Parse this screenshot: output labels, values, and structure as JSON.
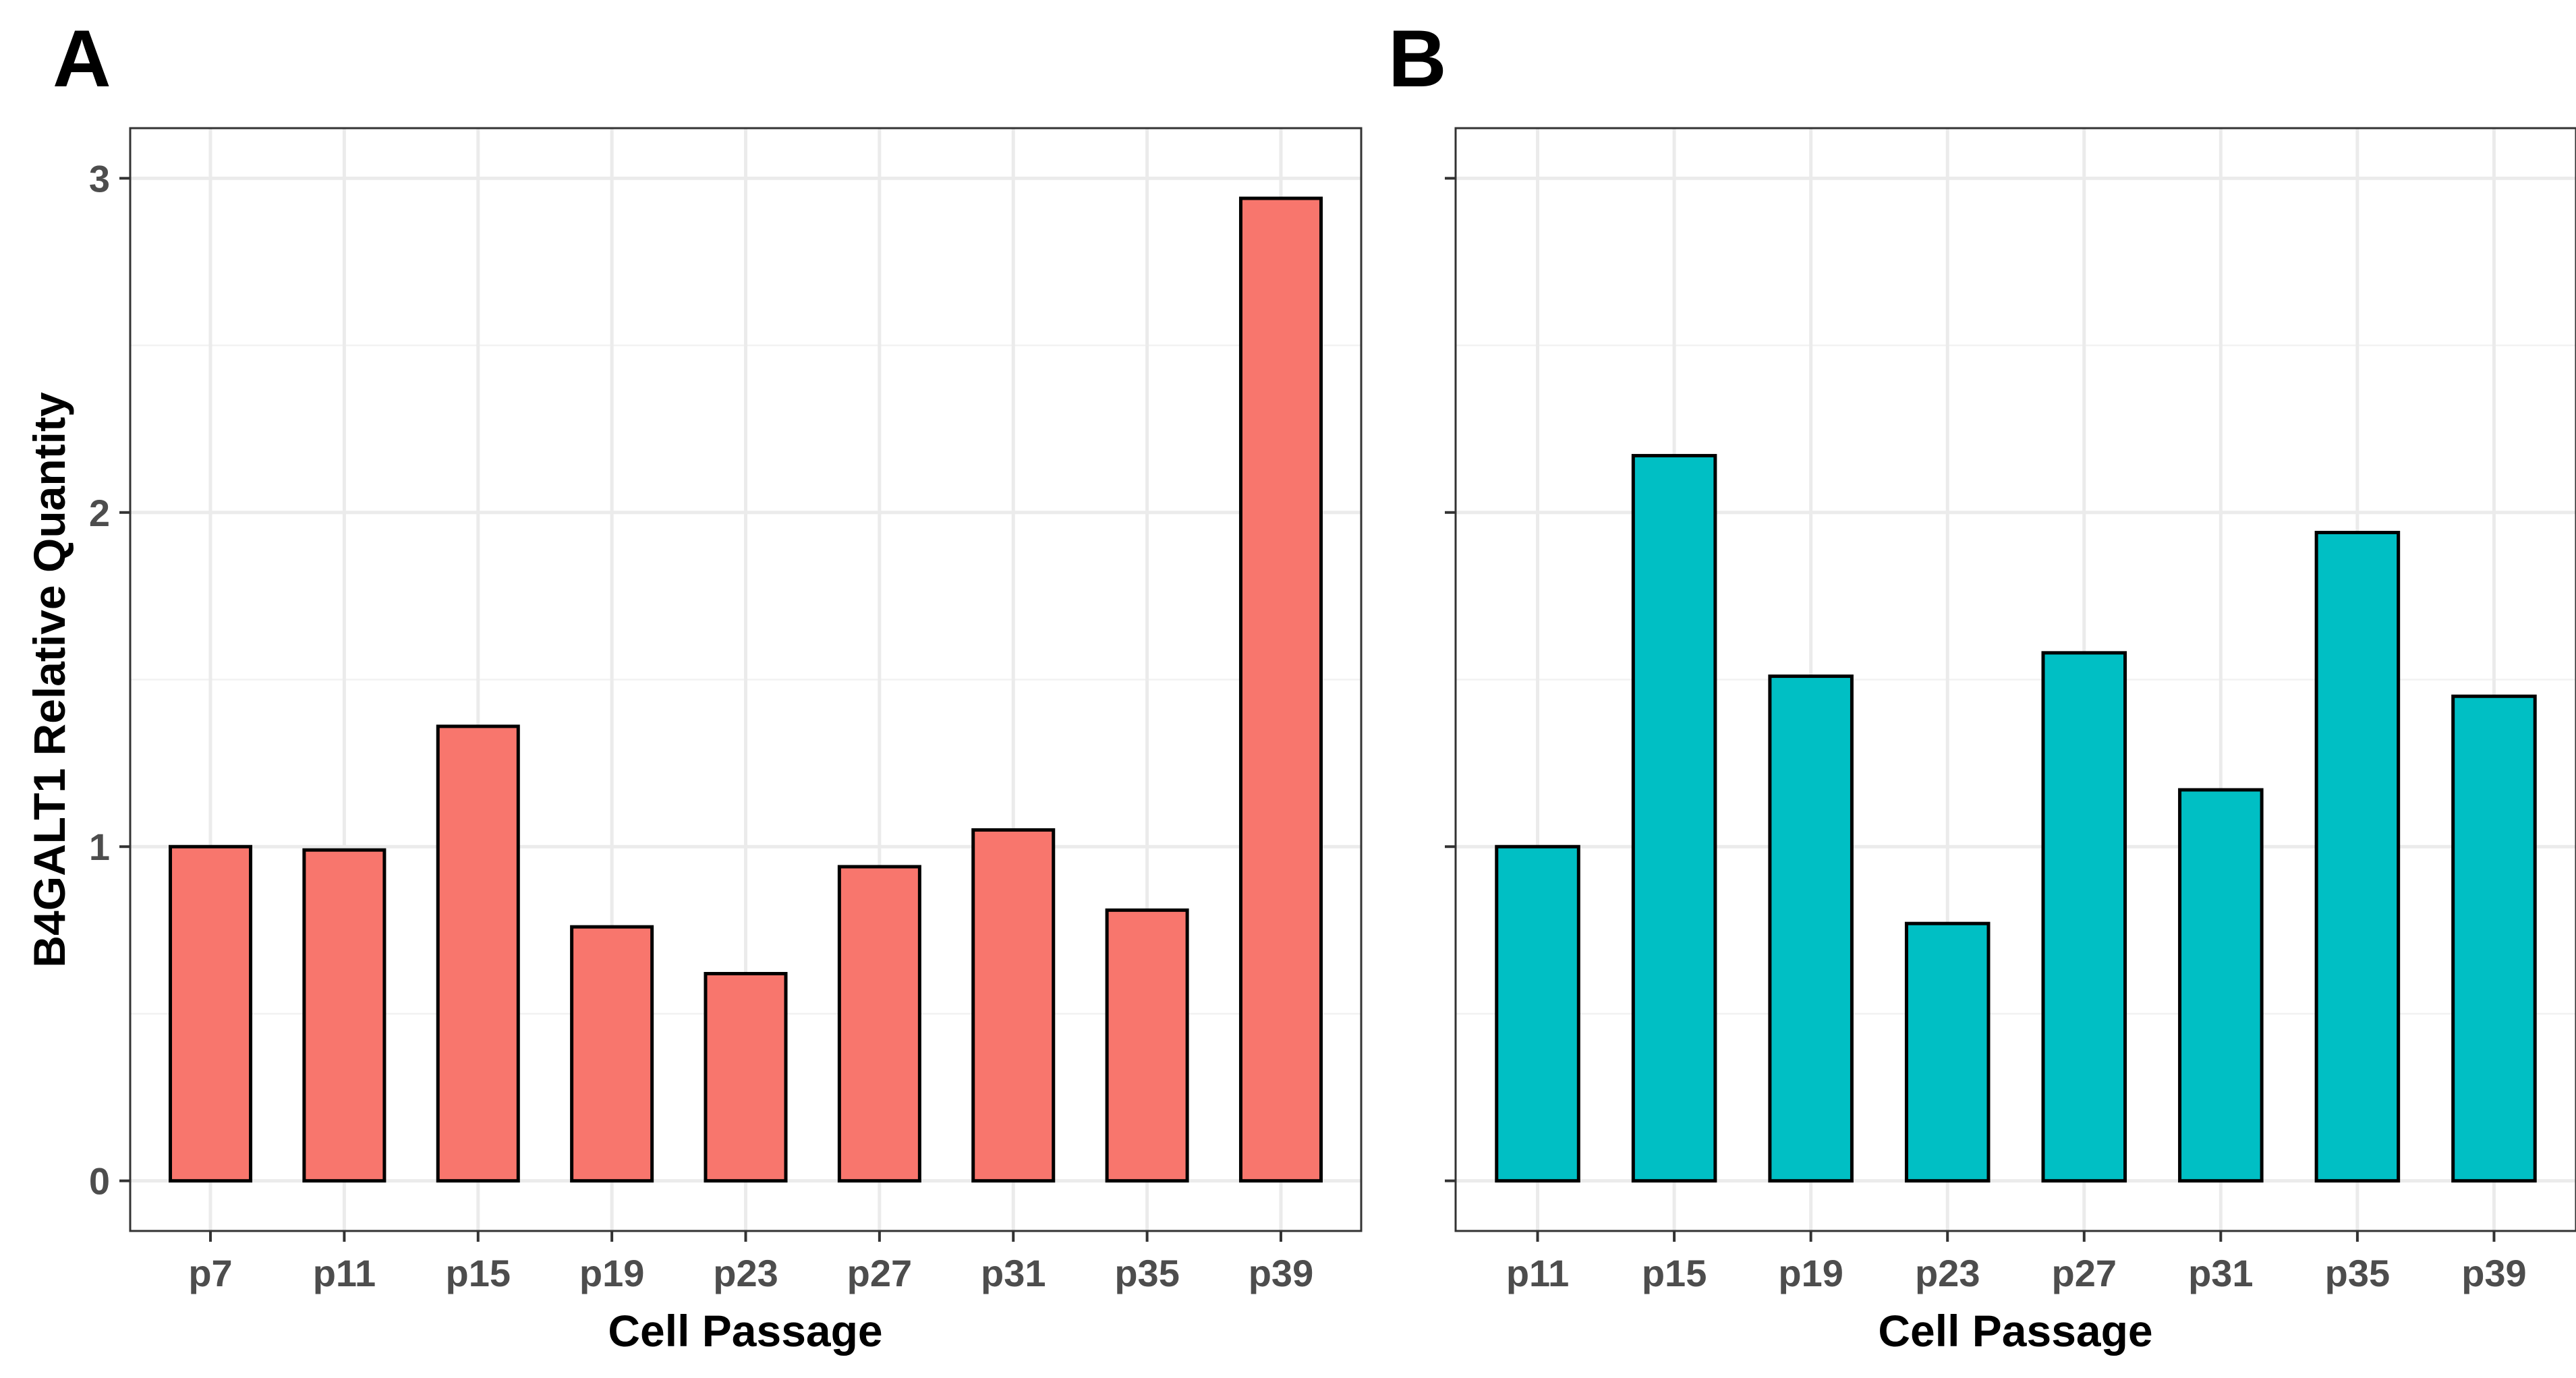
{
  "chart_data": [
    {
      "panel": "A",
      "type": "bar",
      "categories": [
        "p7",
        "p11",
        "p15",
        "p19",
        "p23",
        "p27",
        "p31",
        "p35",
        "p39"
      ],
      "values": [
        1.0,
        0.99,
        1.36,
        0.76,
        0.62,
        0.94,
        1.05,
        0.81,
        2.94
      ],
      "color": "#F8766D",
      "xlabel": "Cell Passage",
      "ylabel": "B4GALT1 Relative Quantity",
      "yticks": [
        0,
        1,
        2,
        3
      ],
      "ylim": [
        -0.15,
        3.15
      ],
      "grid": true
    },
    {
      "panel": "B",
      "type": "bar",
      "categories": [
        "p11",
        "p15",
        "p19",
        "p23",
        "p27",
        "p31",
        "p35",
        "p39"
      ],
      "values": [
        1.0,
        2.17,
        1.51,
        0.77,
        1.58,
        1.17,
        1.94,
        1.45
      ],
      "color": "#00BFC4",
      "xlabel": "Cell Passage",
      "ylabel": "",
      "yticks": [
        0,
        1,
        2,
        3
      ],
      "ylim": [
        -0.15,
        3.15
      ],
      "grid": true
    }
  ]
}
